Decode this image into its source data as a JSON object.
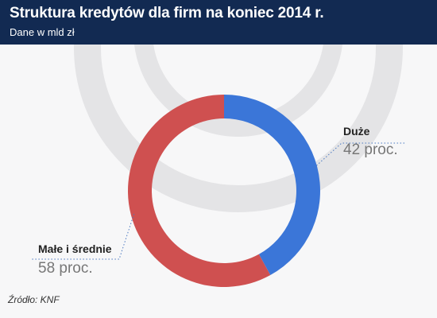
{
  "header": {
    "title": "Struktura kredytów dla firm na koniec 2014 r.",
    "subtitle": "Dane w mld zł"
  },
  "source": "Źródło: KNF",
  "colors": {
    "header_bg": "#122a52",
    "large": "#3b76d8",
    "small_medium": "#cf5050",
    "watermark": "#e4e4e6"
  },
  "chart_data": {
    "type": "pie",
    "variant": "donut",
    "slices": [
      {
        "label": "Duże",
        "value": 42,
        "value_label": "42 proc.",
        "color": "#3b76d8"
      },
      {
        "label": "Małe i średnie",
        "value": 58,
        "value_label": "58 proc.",
        "color": "#cf5050"
      }
    ],
    "start": "top",
    "direction": "clockwise"
  }
}
